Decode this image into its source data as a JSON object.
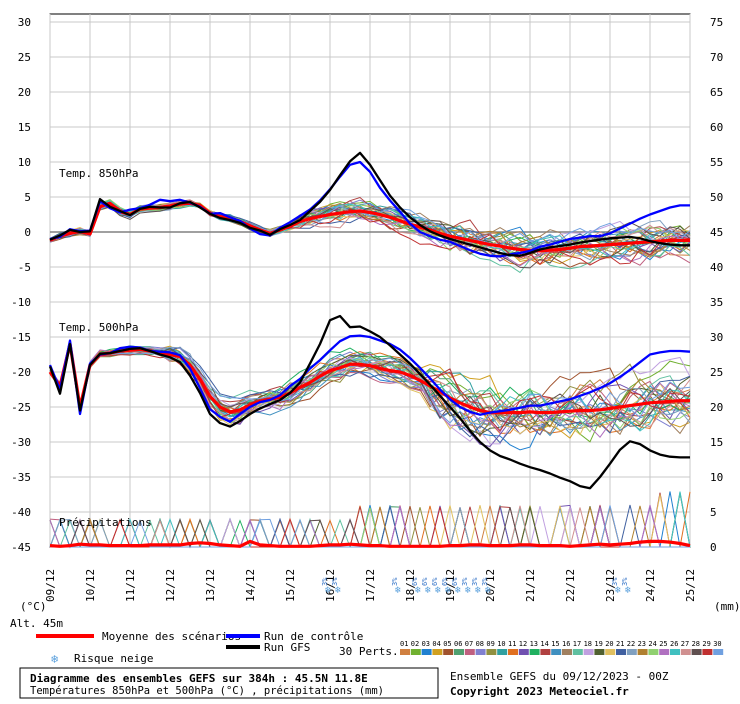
{
  "chart_data": {
    "type": "line",
    "title": "Diagramme des ensembles GEFS sur 384h : 45.5N 11.8E",
    "subtitle": "Températures 850hPa et 500hPa (°C) , précipitations (mm)",
    "run_info": "Ensemble GEFS du 09/12/2023 - 00Z",
    "copyright": "Copyright 2023 Meteociel.fr",
    "altitude": "Alt. 45m",
    "left_unit": "(°C)",
    "right_unit": "(mm)",
    "left_ticks": [
      "30",
      "25",
      "20",
      "15",
      "10",
      "5",
      "0",
      "-5",
      "-10",
      "-15",
      "-20",
      "-25",
      "-30",
      "-35",
      "-40",
      "-45"
    ],
    "right_ticks": [
      "75",
      "70",
      "65",
      "60",
      "55",
      "50",
      "45",
      "40",
      "35",
      "30",
      "25",
      "20",
      "15",
      "10",
      "5",
      "0"
    ],
    "x_dates": [
      "09/12",
      "10/12",
      "11/12",
      "12/12",
      "13/12",
      "14/12",
      "15/12",
      "16/12",
      "17/12",
      "18/12",
      "19/12",
      "20/12",
      "21/12",
      "22/12",
      "23/12",
      "24/12",
      "25/12"
    ],
    "ylim": [
      -45,
      30
    ],
    "panel_labels": {
      "t850": "Temp. 850hPa",
      "t500": "Temp. 500hPa",
      "precip": "Précipitations"
    },
    "x_steps": [
      0,
      6,
      12,
      18,
      24,
      30,
      36,
      42,
      48,
      54,
      60,
      66,
      72,
      78,
      84,
      90,
      96,
      102,
      108,
      114,
      120,
      126,
      132,
      138,
      144,
      150,
      156,
      162,
      168,
      174,
      180,
      186,
      192,
      198,
      204,
      210,
      216,
      222,
      228,
      234,
      240,
      246,
      252,
      258,
      264,
      270,
      276,
      282,
      288,
      294,
      300,
      306,
      312,
      318,
      324,
      330,
      336,
      342,
      348,
      354,
      360,
      366,
      372,
      378,
      384
    ],
    "series": [
      {
        "name": "Moyenne des scénarios 850hPa",
        "color": "#ff0000",
        "values": [
          -1.2,
          -0.6,
          -0.2,
          0.1,
          -0.3,
          3.6,
          4.1,
          2.9,
          2.5,
          3.3,
          3.4,
          3.5,
          3.7,
          4.0,
          4.1,
          3.8,
          2.7,
          2.2,
          2.0,
          1.5,
          0.9,
          0.3,
          -0.2,
          0.3,
          0.8,
          1.5,
          1.9,
          2.2,
          2.5,
          2.7,
          2.9,
          3.0,
          2.8,
          2.5,
          2.1,
          1.6,
          1.1,
          0.7,
          0.3,
          -0.2,
          -0.6,
          -0.9,
          -1.2,
          -1.5,
          -1.8,
          -2.0,
          -2.3,
          -2.5,
          -2.6,
          -2.7,
          -2.6,
          -2.5,
          -2.3,
          -2.1,
          -2.0,
          -1.9,
          -1.8,
          -1.7,
          -1.6,
          -1.5,
          -1.4,
          -1.3,
          -1.2,
          -1.2,
          -1.2
        ]
      },
      {
        "name": "Run de contrôle 850hPa",
        "color": "#0000ff",
        "values": [
          -1.0,
          -0.7,
          0.4,
          0.1,
          0.2,
          4.4,
          3.4,
          2.8,
          3.2,
          3.4,
          3.9,
          4.6,
          4.4,
          4.6,
          4.2,
          3.6,
          2.6,
          2.7,
          2.1,
          1.6,
          0.5,
          -0.3,
          -0.5,
          0.6,
          1.4,
          2.3,
          3.2,
          4.5,
          6.1,
          7.9,
          9.6,
          10.0,
          8.6,
          6.3,
          4.5,
          2.9,
          1.2,
          0.0,
          -0.6,
          -1.1,
          -1.4,
          -2.0,
          -2.6,
          -3.1,
          -3.4,
          -3.5,
          -3.2,
          -3.0,
          -2.7,
          -2.1,
          -1.8,
          -1.4,
          -1.0,
          -0.8,
          -0.6,
          -0.6,
          -0.2,
          0.5,
          1.2,
          1.9,
          2.5,
          3.0,
          3.5,
          3.8,
          3.8
        ]
      },
      {
        "name": "Run GFS 850hPa",
        "color": "#000000",
        "values": [
          -1.1,
          -0.5,
          0.3,
          0.0,
          0.1,
          4.7,
          3.6,
          3.0,
          2.4,
          3.3,
          3.6,
          3.5,
          3.5,
          4.1,
          4.3,
          3.5,
          2.6,
          2.0,
          1.7,
          1.3,
          0.6,
          0.2,
          -0.4,
          0.4,
          1.0,
          1.7,
          3.0,
          4.3,
          6.0,
          8.1,
          10.1,
          11.3,
          9.6,
          7.4,
          5.2,
          3.5,
          2.1,
          1.0,
          0.1,
          -0.5,
          -1.0,
          -1.4,
          -1.8,
          -2.2,
          -2.6,
          -3.0,
          -3.3,
          -3.4,
          -3.0,
          -2.5,
          -2.2,
          -2.0,
          -1.8,
          -1.5,
          -1.3,
          -1.1,
          -0.9,
          -0.8,
          -0.7,
          -0.9,
          -1.3,
          -1.6,
          -1.8,
          -1.9,
          -1.9
        ]
      },
      {
        "name": "Moyenne des scénarios 500hPa",
        "color": "#ff0000",
        "values": [
          -20.0,
          -22.0,
          -16.0,
          -25.0,
          -19.0,
          -17.5,
          -17.3,
          -17.0,
          -16.9,
          -16.8,
          -17.0,
          -17.2,
          -17.5,
          -17.8,
          -19.0,
          -21.0,
          -23.5,
          -25.0,
          -25.7,
          -25.4,
          -24.7,
          -24.2,
          -23.9,
          -23.6,
          -23.0,
          -22.2,
          -21.5,
          -20.6,
          -19.8,
          -19.4,
          -18.9,
          -18.9,
          -19.1,
          -19.5,
          -19.8,
          -20.0,
          -20.5,
          -21.2,
          -22.0,
          -22.8,
          -23.7,
          -24.4,
          -25.0,
          -25.5,
          -25.8,
          -25.8,
          -25.8,
          -25.8,
          -25.7,
          -25.8,
          -25.8,
          -25.7,
          -25.6,
          -25.5,
          -25.5,
          -25.4,
          -25.2,
          -25.0,
          -24.8,
          -24.6,
          -24.4,
          -24.3,
          -24.2,
          -24.1,
          -24.1
        ]
      },
      {
        "name": "Run de contrôle 500hPa",
        "color": "#0000ff",
        "values": [
          -19.0,
          -22.5,
          -15.5,
          -26.0,
          -18.8,
          -17.5,
          -17.3,
          -16.6,
          -16.4,
          -16.5,
          -17.0,
          -17.1,
          -17.2,
          -17.6,
          -19.5,
          -22.3,
          -25.3,
          -26.4,
          -27.1,
          -26.0,
          -25.0,
          -24.3,
          -24.0,
          -23.3,
          -22.0,
          -21.0,
          -19.5,
          -18.3,
          -16.9,
          -15.6,
          -14.9,
          -14.8,
          -15.0,
          -15.5,
          -16.0,
          -16.8,
          -18.0,
          -19.4,
          -20.9,
          -22.5,
          -23.9,
          -25.0,
          -25.7,
          -26.1,
          -25.8,
          -25.6,
          -25.4,
          -25.1,
          -24.8,
          -24.8,
          -24.5,
          -24.2,
          -23.9,
          -23.4,
          -22.9,
          -22.3,
          -21.6,
          -20.7,
          -19.7,
          -18.6,
          -17.5,
          -17.2,
          -17.0,
          -17.0,
          -17.1
        ]
      },
      {
        "name": "Run GFS 500hPa",
        "color": "#000000",
        "values": [
          -19.2,
          -23.1,
          -16.0,
          -25.5,
          -19.0,
          -17.4,
          -17.3,
          -17.0,
          -16.7,
          -16.6,
          -17.0,
          -17.5,
          -17.9,
          -18.6,
          -20.5,
          -23.0,
          -26.0,
          -27.3,
          -27.8,
          -27.0,
          -26.0,
          -25.2,
          -24.6,
          -24.0,
          -23.0,
          -21.5,
          -18.8,
          -16.0,
          -12.6,
          -12.0,
          -13.6,
          -13.5,
          -14.2,
          -15.0,
          -16.2,
          -17.5,
          -18.8,
          -20.3,
          -21.8,
          -23.4,
          -25.0,
          -26.6,
          -28.4,
          -30.0,
          -31.2,
          -32.0,
          -32.5,
          -33.1,
          -33.6,
          -34.0,
          -34.5,
          -35.1,
          -35.6,
          -36.3,
          -36.6,
          -35.0,
          -33.1,
          -31.1,
          -29.9,
          -30.3,
          -31.2,
          -31.8,
          -32.1,
          -32.2,
          -32.2
        ]
      },
      {
        "name": "Moyenne des scénarios précipitations",
        "color": "#ff0000",
        "values": [
          0.2,
          0.1,
          0.2,
          0.4,
          0.3,
          0.3,
          0.2,
          0.2,
          0.2,
          0.2,
          0.3,
          0.3,
          0.3,
          0.3,
          0.5,
          0.6,
          0.5,
          0.3,
          0.2,
          0.1,
          0.8,
          0.3,
          0.2,
          0.1,
          0.1,
          0.1,
          0.1,
          0.2,
          0.3,
          0.3,
          0.4,
          0.3,
          0.2,
          0.2,
          0.1,
          0.1,
          0.1,
          0.1,
          0.1,
          0.1,
          0.2,
          0.2,
          0.3,
          0.3,
          0.2,
          0.2,
          0.2,
          0.3,
          0.3,
          0.2,
          0.2,
          0.2,
          0.1,
          0.2,
          0.3,
          0.4,
          0.3,
          0.4,
          0.5,
          0.7,
          0.8,
          0.8,
          0.7,
          0.5,
          0.2
        ]
      }
    ],
    "snow_risk": [
      {
        "step": 168,
        "label": "3%"
      },
      {
        "step": 174,
        "label": "3%"
      },
      {
        "step": 210,
        "label": "3%"
      },
      {
        "step": 222,
        "label": "6%"
      },
      {
        "step": 228,
        "label": "6%"
      },
      {
        "step": 234,
        "label": "6%"
      },
      {
        "step": 240,
        "label": "6%"
      },
      {
        "step": 246,
        "label": "6%"
      },
      {
        "step": 252,
        "label": "3%"
      },
      {
        "step": 258,
        "label": "3%"
      },
      {
        "step": 264,
        "label": "3%"
      },
      {
        "step": 342,
        "label": "3%"
      },
      {
        "step": 348,
        "label": "3%"
      }
    ],
    "members_label": "30 Perts.",
    "members": [
      "01",
      "02",
      "03",
      "04",
      "05",
      "06",
      "07",
      "08",
      "09",
      "10",
      "11",
      "12",
      "13",
      "14",
      "15",
      "16",
      "17",
      "18",
      "19",
      "20",
      "21",
      "22",
      "23",
      "24",
      "25",
      "26",
      "27",
      "28",
      "29",
      "30"
    ],
    "member_colors": [
      "#d08040",
      "#70b030",
      "#2080d0",
      "#d0a020",
      "#a0522d",
      "#50a070",
      "#c06080",
      "#8080d0",
      "#909040",
      "#30a0a0",
      "#e07020",
      "#7050b0",
      "#20b060",
      "#b04040",
      "#4090c0",
      "#a08060",
      "#60c0a0",
      "#c0a0e0",
      "#506030",
      "#e0c060",
      "#4060a0",
      "#80a0c0",
      "#b08030",
      "#90d070",
      "#b070c0",
      "#40c0c0",
      "#d09090",
      "#605050",
      "#c03030",
      "#70a0e0"
    ],
    "legend": {
      "mean": "Moyenne des scénarios",
      "control": "Run de contrôle",
      "gfs": "Run GFS",
      "snow": "Risque neige"
    }
  }
}
